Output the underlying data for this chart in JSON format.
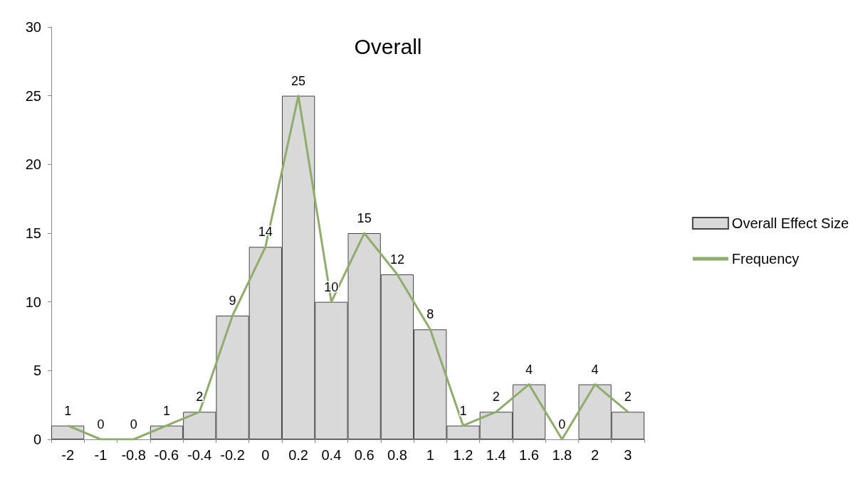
{
  "chart_data": {
    "type": "bar",
    "title": "Overall",
    "categories": [
      "-2",
      "-1",
      "-0.8",
      "-0.6",
      "-0.4",
      "-0.2",
      "0",
      "0.2",
      "0.4",
      "0.6",
      "0.8",
      "1",
      "1.2",
      "1.4",
      "1.6",
      "1.8",
      "2",
      "3"
    ],
    "series": [
      {
        "name": "Overall Effect Size",
        "color": "#d9d9d9",
        "values": [
          1,
          0,
          0,
          1,
          2,
          9,
          14,
          25,
          10,
          15,
          12,
          8,
          1,
          2,
          4,
          0,
          4,
          2
        ]
      },
      {
        "name": "Frequency",
        "type": "line",
        "color": "#8fac6c",
        "values": [
          1,
          0,
          0,
          1,
          2,
          9,
          14,
          25,
          10,
          15,
          12,
          8,
          1,
          2,
          4,
          0,
          4,
          2
        ],
        "value_labels": [
          "1",
          "0",
          "0",
          "1",
          "2",
          "9",
          "14",
          "25",
          "10",
          "15",
          "12",
          "8",
          "1",
          "2",
          "4",
          "0",
          "4",
          "2"
        ]
      }
    ],
    "ylim": [
      0,
      30
    ],
    "yticks": [
      0,
      5,
      10,
      15,
      20,
      25,
      30
    ],
    "legend": "right"
  }
}
